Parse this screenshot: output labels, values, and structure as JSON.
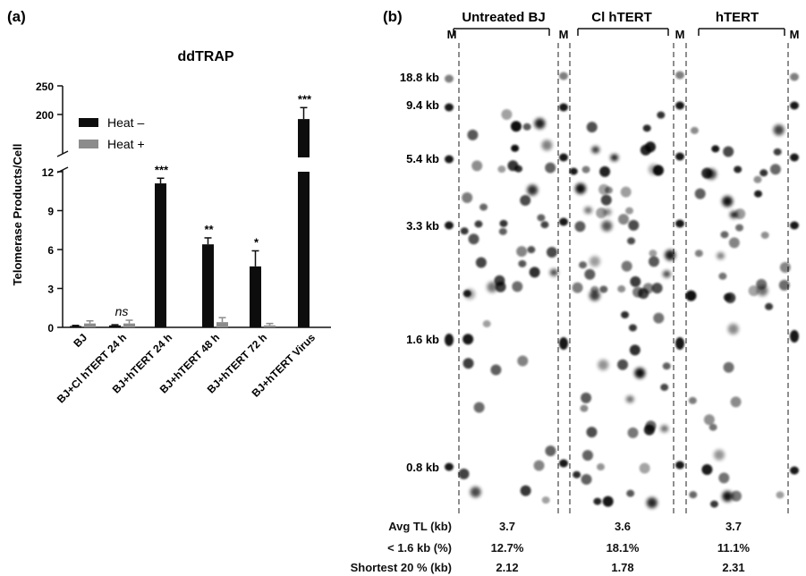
{
  "panel_a": {
    "letter": "(a)",
    "chart_data": {
      "type": "bar",
      "title": "ddTRAP",
      "ylabel": "Telomerase Products/Cell",
      "xlabel": "",
      "categories": [
        "BJ",
        "BJ+Cl hTERT 24 h",
        "BJ+hTERT 24 h",
        "BJ+hTERT 48 h",
        "BJ+hTERT 72 h",
        "BJ+hTERT Virus"
      ],
      "series": [
        {
          "name": "Heat –",
          "color": "#0d0d0d",
          "values": [
            0.1,
            0.15,
            11.1,
            6.4,
            4.7,
            192
          ],
          "errors": [
            0.05,
            0.05,
            0.4,
            0.5,
            1.2,
            20
          ]
        },
        {
          "name": "Heat +",
          "color": "#8c8c8c",
          "values": [
            0.3,
            0.3,
            0.0,
            0.4,
            0.15,
            0.0
          ],
          "errors": [
            0.2,
            0.25,
            0.0,
            0.35,
            0.15,
            0.0
          ]
        }
      ],
      "significance": [
        "",
        "ns",
        "***",
        "**",
        "*",
        "***"
      ],
      "broken_axis": true,
      "lower_ylim": [
        0,
        12
      ],
      "lower_yticks": [
        "0",
        "3",
        "6",
        "9",
        "12"
      ],
      "upper_ylim": [
        150,
        250
      ],
      "upper_yticks": [
        "200",
        "250"
      ],
      "legend_position": "top-left"
    }
  },
  "panel_b": {
    "letter": "(b)",
    "groups": [
      {
        "label": "Untreated BJ"
      },
      {
        "label": "Cl hTERT"
      },
      {
        "label": "hTERT"
      }
    ],
    "marker_label": "M",
    "size_markers": [
      "18.8 kb",
      "9.4 kb",
      "5.4 kb",
      "3.3 kb",
      "1.6 kb",
      "0.8 kb"
    ],
    "stats": [
      {
        "label": "Avg TL (kb)",
        "values": [
          "3.7",
          "3.6",
          "3.7"
        ]
      },
      {
        "label": "< 1.6 kb (%)",
        "values": [
          "12.7%",
          "18.1%",
          "11.1%"
        ]
      },
      {
        "label": "Shortest 20 % (kb)",
        "values": [
          "2.12",
          "1.78",
          "2.31"
        ]
      }
    ]
  }
}
